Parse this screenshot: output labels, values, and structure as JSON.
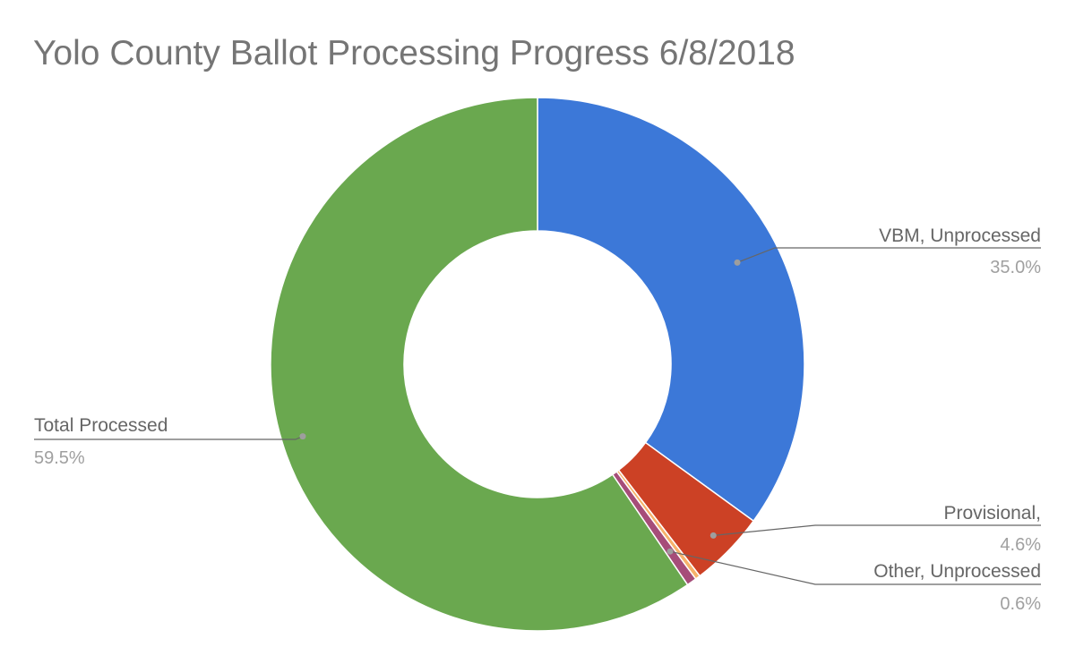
{
  "chart_data": {
    "type": "pie",
    "variant": "donut",
    "title": "Yolo County Ballot Processing Progress 6/8/2018",
    "slices": [
      {
        "name": "VBM, Unprocessed",
        "value": 35.0,
        "label": "35.0%",
        "color": "#3c78d8"
      },
      {
        "name": "Provisional,",
        "value": 4.6,
        "label": "4.6%",
        "color": "#cc4125"
      },
      {
        "name": "",
        "value": 0.3,
        "label": "",
        "color": "#f6b26b"
      },
      {
        "name": "Other, Unprocessed",
        "value": 0.6,
        "label": "0.6%",
        "color": "#a64d79"
      },
      {
        "name": "Total Processed",
        "value": 59.5,
        "label": "59.5%",
        "color": "#6aa84f"
      }
    ]
  }
}
